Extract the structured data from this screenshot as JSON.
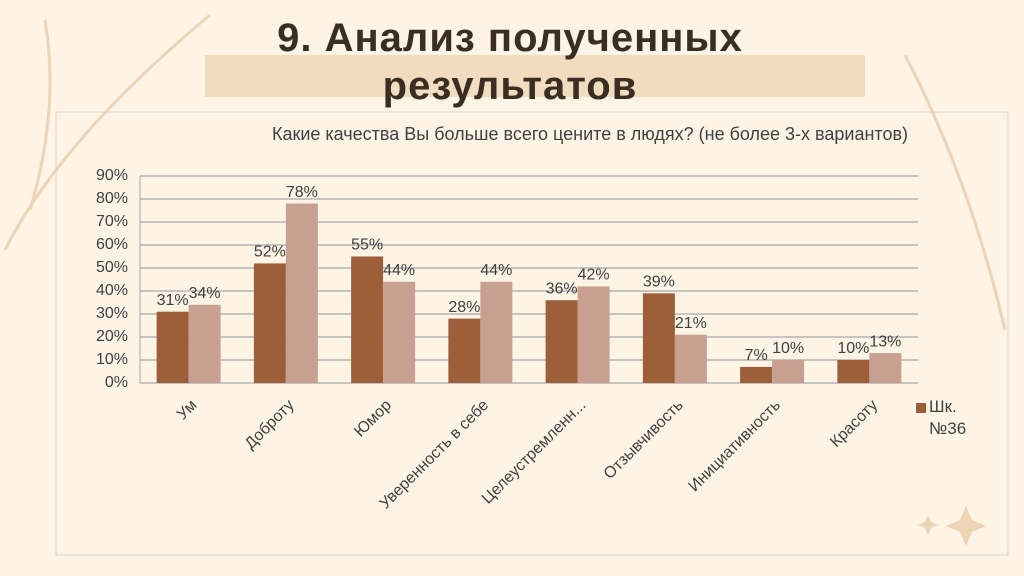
{
  "chart_data": {
    "type": "bar",
    "slide_title": "9. Анализ полученных результатов",
    "title": "Какие качества Вы больше всего цените в людях? (не более 3-х вариантов)",
    "categories": [
      "Ум",
      "Доброту",
      "Юмор",
      "Уверенность в себе",
      "Целеустремленн...",
      "Отзывчивость",
      "Инициативность",
      "Красоту"
    ],
    "series": [
      {
        "name": "Шк. №36",
        "color": "#9c5f3a",
        "values": [
          31,
          52,
          55,
          28,
          36,
          39,
          7,
          10
        ],
        "value_labels": [
          "31%",
          "52%",
          "55%",
          "28%",
          "36%",
          "39%",
          "7%",
          "10%"
        ]
      },
      {
        "color": "#c7a092",
        "values": [
          34,
          78,
          44,
          44,
          42,
          21,
          10,
          13
        ],
        "value_labels": [
          "34%",
          "78%",
          "44%",
          "44%",
          "42%",
          "21%",
          "10%",
          "13%"
        ]
      }
    ],
    "ylim": [
      0,
      90
    ],
    "yticks": [
      {
        "value": 0,
        "label": "0%"
      },
      {
        "value": 10,
        "label": "10%"
      },
      {
        "value": 20,
        "label": "20%"
      },
      {
        "value": 30,
        "label": "30%"
      },
      {
        "value": 40,
        "label": "40%"
      },
      {
        "value": 50,
        "label": "50%"
      },
      {
        "value": 60,
        "label": "60%"
      },
      {
        "value": 70,
        "label": "70%"
      },
      {
        "value": 80,
        "label": "80%"
      },
      {
        "value": 90,
        "label": "90%"
      }
    ],
    "grid": true,
    "legend": "right"
  }
}
